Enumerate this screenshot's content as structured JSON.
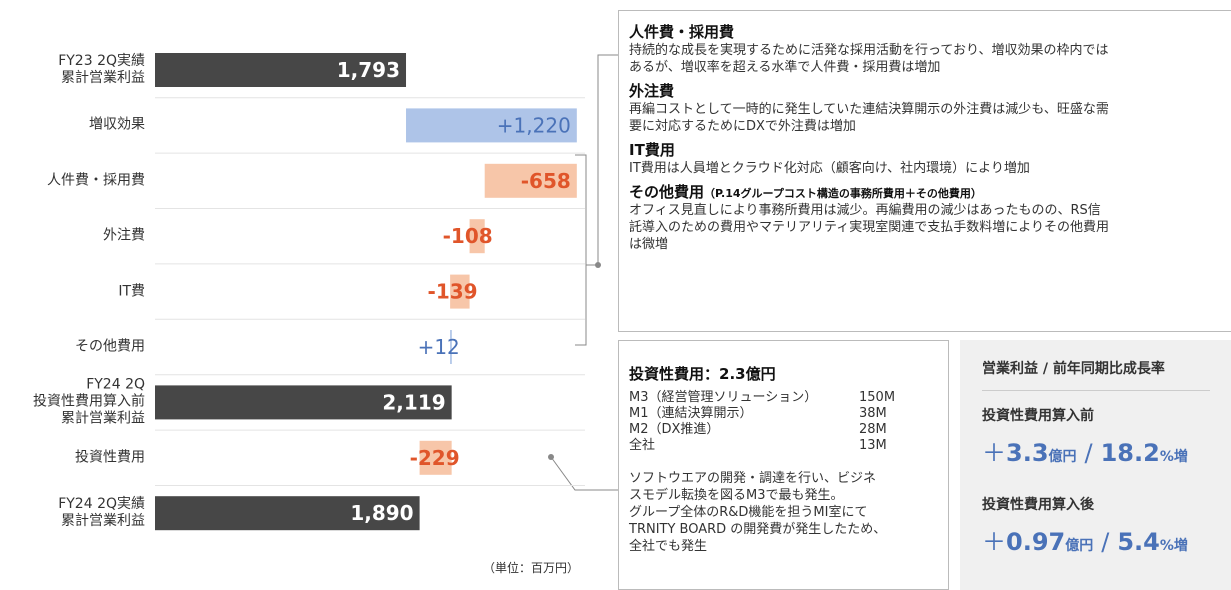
{
  "chart_data": {
    "type": "waterfall",
    "categories": [
      "FY23 2Q実績\n累計営業利益",
      "増収効果",
      "人件費・採用費",
      "外注費",
      "IT費",
      "その他費用",
      "FY24 2Q\n投資性費用算入前\n累計営業利益",
      "投資性費用",
      "FY24 2Q実績\n累計営業利益"
    ],
    "measure": [
      "total",
      "relative",
      "relative",
      "relative",
      "relative",
      "relative",
      "total",
      "relative",
      "total"
    ],
    "values": [
      1793,
      1220,
      -658,
      -108,
      -139,
      12,
      2119,
      -229,
      1890
    ],
    "value_labels": [
      "1,793",
      "+1,220",
      "-658",
      "-108",
      "-139",
      "+12",
      "2,119",
      "-229",
      "1,890"
    ],
    "xlim": [
      0,
      3050
    ],
    "colors": {
      "total": "#474747",
      "increase": "#aec4e8",
      "decrease": "#f7c6a9"
    },
    "label_colors": {
      "total": "#ffffff",
      "increase": "#4a72b8",
      "decrease": "#e0552a"
    },
    "unit_note": "（単位：百万円）"
  },
  "cost_notes": [
    {
      "heading": "人件費・採用費",
      "body": "持続的な成長を実現するために活発な採用活動を行っており、増収効果の枠内では\nあるが、増収率を超える水準で人件費・採用費は増加"
    },
    {
      "heading": "外注費",
      "body": "再編コストとして一時的に発生していた連結決算開示の外注費は減少も、旺盛な需\n要に対応するためにDXで外注費は増加"
    },
    {
      "heading": "IT費用",
      "body": "IT費用は人員増とクラウド化対応（顧客向け、社内環境）により増加"
    },
    {
      "heading": "その他費用",
      "sub": "（P.14グループコスト構造の事務所費用＋その他費用）",
      "body": "オフィス見直しにより事務所費用は減少。再編費用の減少はあったものの、RS信\n託導入のための費用やマテリアリティ実現室関連で支払手数料増によりその他費用\nは微増"
    }
  ],
  "investment": {
    "title": "投資性費用：2.3億円",
    "items": [
      {
        "name": "M3（経営管理ソリューション）",
        "amount": "150M"
      },
      {
        "name": "M1（連結決算開示）",
        "amount": "38M"
      },
      {
        "name": "M2（DX推進）",
        "amount": "28M"
      },
      {
        "name": "全社",
        "amount": "13M"
      }
    ],
    "body": "ソフトウエアの開発・調達を行い、ビジネ\nスモデル転換を図るM3で最も発生。\nグループ全体のR&D機能を担うMI室にて\nTRNITY BOARD の開発費が発生したため、\n全社でも発生"
  },
  "growth": {
    "title": "営業利益 / 前年同期比成長率",
    "rows": [
      {
        "label": "投資性費用算入前",
        "sign": "＋",
        "amount": "3.3",
        "amount_unit": "億円",
        "sep": "/",
        "rate": "18.2",
        "rate_unit": "%増"
      },
      {
        "label": "投資性費用算入後",
        "sign": "＋",
        "amount": "0.97",
        "amount_unit": "億円",
        "sep": "/",
        "rate": "5.4",
        "rate_unit": "%増"
      }
    ]
  }
}
